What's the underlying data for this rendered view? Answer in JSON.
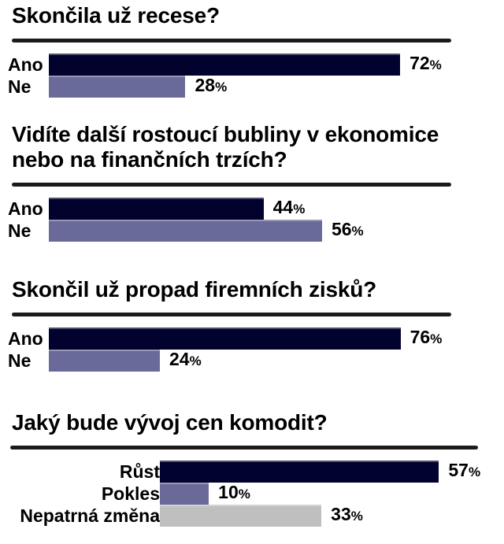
{
  "page": {
    "background": "#ffffff",
    "text_color": "#000000",
    "description": "Czech investor survey results, four horizontal bar charts"
  },
  "colors": {
    "bar_navy": "#02022e",
    "bar_slate": "#6a6a9a",
    "bar_gray": "#bfbfbf",
    "title_rule": "#1b1b1b"
  },
  "chart_data": [
    {
      "type": "bar",
      "orientation": "horizontal",
      "title": "Skončila už recese?",
      "categories": [
        "Ano",
        "Ne"
      ],
      "values": [
        72,
        28
      ],
      "value_labels": [
        "72%",
        "28%"
      ],
      "unit": "%",
      "xlim": [
        0,
        92
      ],
      "grid": false,
      "legend": false,
      "colors": [
        "#02022e",
        "#6a6a9a"
      ]
    },
    {
      "type": "bar",
      "orientation": "horizontal",
      "title": "Vidíte další rostoucí bubliny v ekonomice nebo na finančních trzích?",
      "categories": [
        "Ano",
        "Ne"
      ],
      "values": [
        44,
        56
      ],
      "value_labels": [
        "44%",
        "56%"
      ],
      "unit": "%",
      "xlim": [
        0,
        92
      ],
      "grid": false,
      "legend": false,
      "colors": [
        "#02022e",
        "#6a6a9a"
      ]
    },
    {
      "type": "bar",
      "orientation": "horizontal",
      "title": "Skončil už propad firemních zisků?",
      "categories": [
        "Ano",
        "Ne"
      ],
      "values": [
        76,
        24
      ],
      "value_labels": [
        "76%",
        "24%"
      ],
      "unit": "%",
      "xlim": [
        0,
        97
      ],
      "grid": false,
      "legend": false,
      "colors": [
        "#02022e",
        "#6a6a9a"
      ]
    },
    {
      "type": "bar",
      "orientation": "horizontal",
      "title": "Jaký bude vývoj cen komodit?",
      "categories": [
        "Růst",
        "Pokles",
        "Nepatrná změna"
      ],
      "values": [
        57,
        10,
        33
      ],
      "value_labels": [
        "57%",
        "10%",
        "33%"
      ],
      "unit": "%",
      "xlim": [
        0,
        69
      ],
      "grid": false,
      "legend": false,
      "colors": [
        "#02022e",
        "#6a6a9a",
        "#bfbfbf"
      ]
    }
  ]
}
